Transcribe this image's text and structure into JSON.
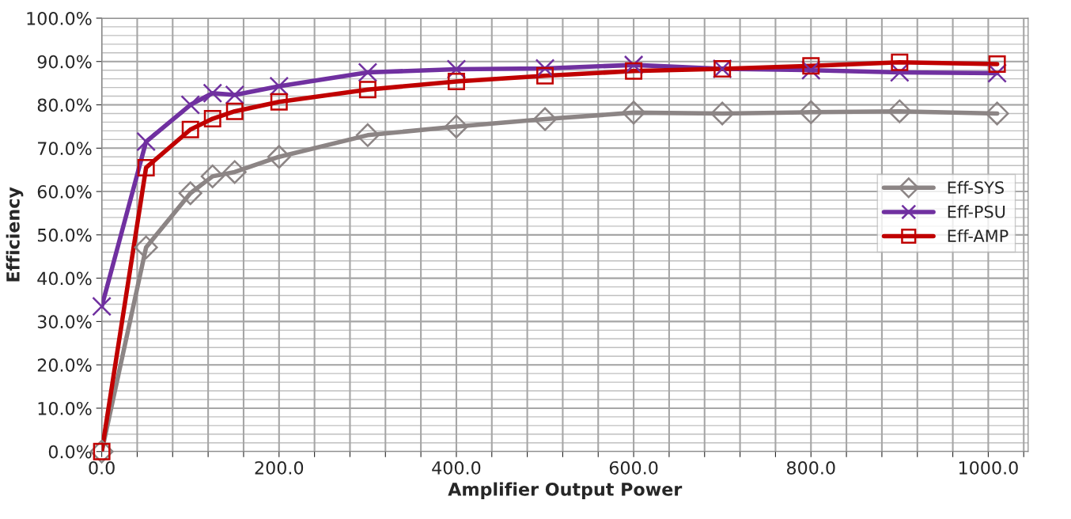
{
  "chart_data": {
    "type": "line",
    "xlabel": "Amplifier Output Power",
    "ylabel": "Efficiency",
    "x": [
      0,
      50,
      100,
      125,
      150,
      200,
      300,
      400,
      500,
      600,
      700,
      800,
      900,
      1010
    ],
    "series": [
      {
        "name": "Eff-SYS",
        "color": "#8c8585",
        "marker": "diamond",
        "values": [
          0,
          47.1,
          59.6,
          63.5,
          64.5,
          68,
          73,
          75,
          76.7,
          78.2,
          78,
          78.3,
          78.5,
          78
        ]
      },
      {
        "name": "Eff-PSU",
        "color": "#7030a0",
        "marker": "cross",
        "values": [
          33.5,
          71.5,
          80,
          82.7,
          82.3,
          84.3,
          87.5,
          88.2,
          88.4,
          89.2,
          88.3,
          88,
          87.5,
          87.3
        ]
      },
      {
        "name": "Eff-AMP",
        "color": "#c00000",
        "marker": "square",
        "values": [
          0,
          65.5,
          74.3,
          76.8,
          78.5,
          80.7,
          83.5,
          85.4,
          86.7,
          87.8,
          88.3,
          89,
          89.8,
          89.4
        ]
      }
    ],
    "xlim": [
      0,
      1045
    ],
    "xticks": [
      {
        "value": 0,
        "label": "0.0"
      },
      {
        "value": 40,
        "label": null
      },
      {
        "value": 80,
        "label": null
      },
      {
        "value": 120,
        "label": null
      },
      {
        "value": 160,
        "label": null
      },
      {
        "value": 200,
        "label": "200.0"
      },
      {
        "value": 240,
        "label": null
      },
      {
        "value": 280,
        "label": null
      },
      {
        "value": 320,
        "label": null
      },
      {
        "value": 360,
        "label": null
      },
      {
        "value": 400,
        "label": "400.0"
      },
      {
        "value": 440,
        "label": null
      },
      {
        "value": 480,
        "label": null
      },
      {
        "value": 520,
        "label": null
      },
      {
        "value": 560,
        "label": null
      },
      {
        "value": 600,
        "label": "600.0"
      },
      {
        "value": 640,
        "label": null
      },
      {
        "value": 680,
        "label": null
      },
      {
        "value": 720,
        "label": null
      },
      {
        "value": 760,
        "label": null
      },
      {
        "value": 800,
        "label": "800.0"
      },
      {
        "value": 840,
        "label": null
      },
      {
        "value": 880,
        "label": null
      },
      {
        "value": 920,
        "label": null
      },
      {
        "value": 960,
        "label": null
      },
      {
        "value": 1000,
        "label": "1000.0"
      },
      {
        "value": 1040,
        "label": null
      }
    ],
    "ylim": [
      0,
      100
    ],
    "yticks": [
      {
        "value": 0,
        "label": "0.0%"
      },
      {
        "value": 10,
        "label": "10.0%"
      },
      {
        "value": 20,
        "label": "20.0%"
      },
      {
        "value": 30,
        "label": "30.0%"
      },
      {
        "value": 40,
        "label": "40.0%"
      },
      {
        "value": 50,
        "label": "50.0%"
      },
      {
        "value": 60,
        "label": "60.0%"
      },
      {
        "value": 70,
        "label": "70.0%"
      },
      {
        "value": 80,
        "label": "80.0%"
      },
      {
        "value": 90,
        "label": "90.0%"
      },
      {
        "value": 100,
        "label": "100.0%"
      }
    ],
    "grid": true,
    "legend": "right"
  }
}
